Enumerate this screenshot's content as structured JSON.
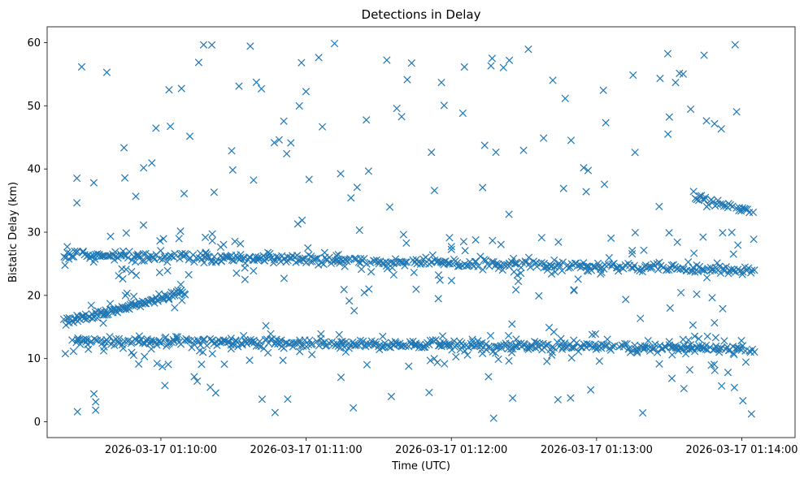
{
  "chart_data": {
    "type": "scatter",
    "title": "Detections in Delay",
    "xlabel": "Time (UTC)",
    "ylabel": "Bistatic Delay (km)",
    "marker": "x",
    "color": "#1f77b4",
    "grid": false,
    "legend": "none",
    "x_start": "2026-03-17 01:09:20",
    "x_end": "2026-03-17 01:14:05",
    "xlim": [
      "2026-03-17 01:09:13",
      "2026-03-17 01:14:22"
    ],
    "ylim": [
      -2.5,
      62.5
    ],
    "xticks": [
      {
        "label": "2026-03-17 01:10:00"
      },
      {
        "label": "2026-03-17 01:11:00"
      },
      {
        "label": "2026-03-17 01:12:00"
      },
      {
        "label": "2026-03-17 01:13:00"
      },
      {
        "label": "2026-03-17 01:14:00"
      }
    ],
    "yticks": [
      0,
      10,
      20,
      30,
      40,
      50,
      60
    ],
    "tracks": [
      {
        "label": "rising track",
        "start": "2026-03-17 01:09:20",
        "end": "2026-03-17 01:10:10",
        "delay_start": 15.8,
        "delay_end": 20.5
      },
      {
        "label": "upper track",
        "start": "2026-03-17 01:09:20",
        "end": "2026-03-17 01:14:05",
        "delay_start": 26.5,
        "delay_end": 24.0
      },
      {
        "label": "lower track",
        "start": "2026-03-17 01:09:25",
        "end": "2026-03-17 01:14:05",
        "delay_start": 12.8,
        "delay_end": 11.5
      },
      {
        "label": "late track",
        "start": "2026-03-17 01:13:40",
        "end": "2026-03-17 01:14:05",
        "delay_start": 35.8,
        "delay_end": 33.0
      }
    ],
    "clutter_delay_range": [
      0.5,
      60
    ],
    "clutter_count": 380
  }
}
